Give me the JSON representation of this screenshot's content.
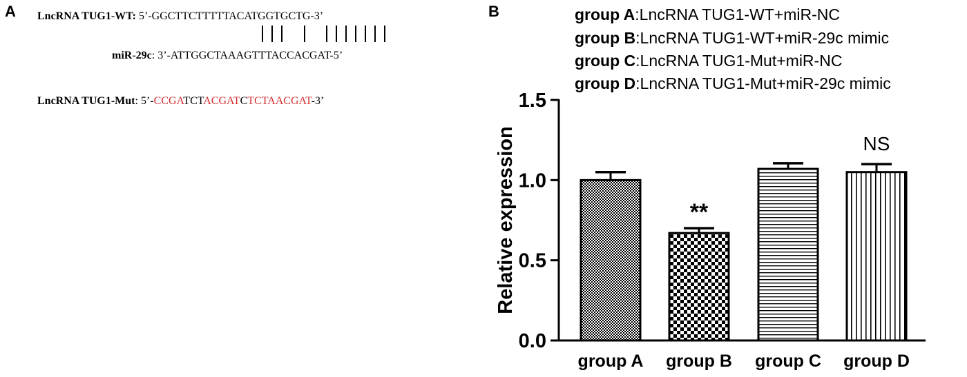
{
  "panelA": {
    "letter": "A",
    "wt": {
      "label": "LncRNA TUG1-WT:",
      "prefix": " 5’-",
      "sequence": "GGCTTCTTTTTACATGGTGCTG",
      "suffix": "-3’"
    },
    "mir": {
      "label": "miR-29c",
      "colon": ":",
      "prefix": " 3’-",
      "sequence": "ATTGGCTAAAGTTTACCACGAT",
      "suffix": "-5’"
    },
    "mut": {
      "label": "LncRNA TUG1-Mut",
      "colon": ":",
      "prefix": " 5’-",
      "segments": [
        {
          "text": "CCGA",
          "mutated": true
        },
        {
          "text": "TCT",
          "mutated": false
        },
        {
          "text": "ACGAT",
          "mutated": true
        },
        {
          "text": "C",
          "mutated": false
        },
        {
          "text": "TCTAACGAT",
          "mutated": true
        }
      ],
      "suffix": "-3’",
      "mutated_color": "#d42b2b"
    }
  },
  "panelB": {
    "letter": "B",
    "legend": [
      {
        "key": "group A",
        "text": ":LncRNA TUG1-WT+miR-NC"
      },
      {
        "key": "group B",
        "text": ":LncRNA TUG1-WT+miR-29c mimic"
      },
      {
        "key": "group C",
        "text": ":LncRNA TUG1-Mut+miR-NC"
      },
      {
        "key": "group D",
        "text": ":LncRNA TUG1-Mut+miR-29c mimic"
      }
    ]
  },
  "chart_data": {
    "type": "bar",
    "categories": [
      "group A",
      "group B",
      "group C",
      "group D"
    ],
    "values": [
      1.0,
      0.67,
      1.07,
      1.05
    ],
    "errors": [
      0.05,
      0.03,
      0.035,
      0.05
    ],
    "patterns": [
      "fine-checker",
      "coarse-checker",
      "horizontal-lines",
      "vertical-lines"
    ],
    "annotations": [
      "",
      "**",
      "",
      "NS"
    ],
    "ylabel": "Relative expression",
    "ylim": [
      0,
      1.5
    ],
    "yticks": [
      "0.0",
      "0.5",
      "1.0",
      "1.5"
    ],
    "ytick_values": [
      0,
      0.5,
      1.0,
      1.5
    ],
    "grid": false
  }
}
